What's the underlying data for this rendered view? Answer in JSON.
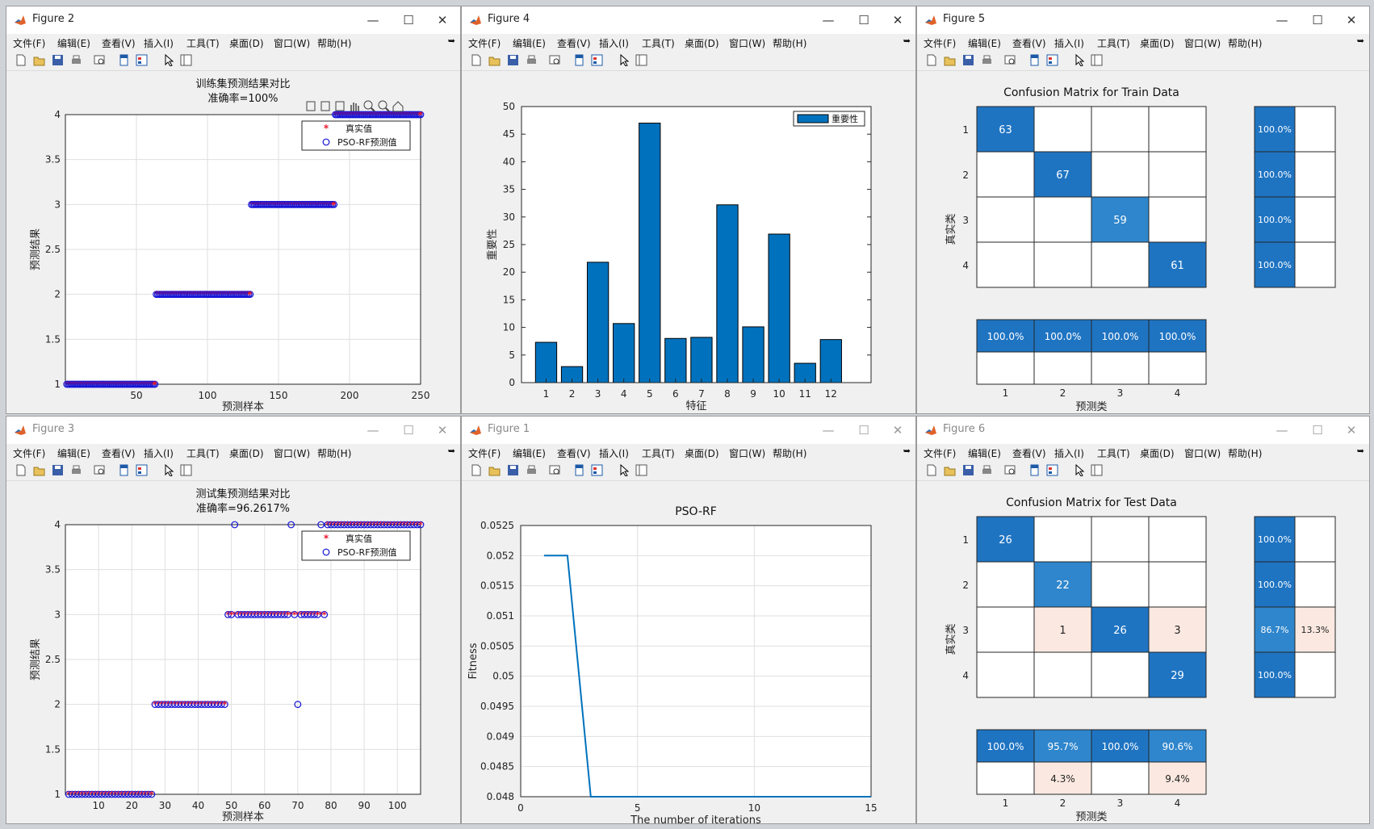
{
  "menu": [
    "文件(F)",
    "编辑(E)",
    "查看(V)",
    "插入(I)",
    "工具(T)",
    "桌面(D)",
    "窗口(W)",
    "帮助(H)"
  ],
  "windows": {
    "fig2": {
      "title": "Figure 2"
    },
    "fig4": {
      "title": "Figure 4"
    },
    "fig5": {
      "title": "Figure 5"
    },
    "fig3": {
      "title": "Figure 3"
    },
    "fig1": {
      "title": "Figure 1"
    },
    "fig6": {
      "title": "Figure 6"
    }
  },
  "colors": {
    "accent": "#0072bd",
    "true_marker": "#e8172b",
    "pred_marker": "#1515d8",
    "cm_dark": "#1f74c2",
    "cm_mid": "#2f86cc",
    "cm_pale": "#fbe9e1"
  },
  "scatter_train": {
    "title": "训练集预测结果对比",
    "subtitle": "准确率=100%",
    "xlabel": "预测样本",
    "ylabel": "预测结果",
    "legend": [
      "真实值",
      "PSO-RF预测值"
    ]
  },
  "scatter_test": {
    "title": "测试集预测结果对比",
    "subtitle": "准确率=96.2617%",
    "xlabel": "预测样本",
    "ylabel": "预测结果",
    "legend": [
      "真实值",
      "PSO-RF预测值"
    ]
  },
  "importance": {
    "xlabel": "特征",
    "ylabel": "重要性",
    "legend": "重要性"
  },
  "fitness": {
    "title": "PSO-RF",
    "xlabel": "The number of iterations",
    "ylabel": "Fitness"
  },
  "cm_train_title": "Confusion Matrix for Train Data",
  "cm_test_title": "Confusion Matrix for Test Data",
  "cm_ylabel": "真实类",
  "cm_xlabel": "预测类",
  "chart_data": [
    {
      "id": "train-scatter",
      "type": "scatter",
      "title": "训练集预测结果对比 准确率=100%",
      "xlabel": "预测样本",
      "ylabel": "预测结果",
      "xlim": [
        0,
        250
      ],
      "ylim": [
        1,
        4
      ],
      "xticks": [
        50,
        100,
        150,
        200,
        250
      ],
      "yticks": [
        1,
        1.5,
        2,
        2.5,
        3,
        3.5,
        4
      ],
      "grid": true,
      "legend_position": "top-right",
      "segments": [
        {
          "class": 1,
          "from": 1,
          "to": 63
        },
        {
          "class": 2,
          "from": 64,
          "to": 130
        },
        {
          "class": 3,
          "from": 131,
          "to": 189
        },
        {
          "class": 4,
          "from": 190,
          "to": 250
        }
      ]
    },
    {
      "id": "feature-importance",
      "type": "bar",
      "xlabel": "特征",
      "ylabel": "重要性",
      "ylim": [
        0,
        50
      ],
      "yticks": [
        0,
        5,
        10,
        15,
        20,
        25,
        30,
        35,
        40,
        45,
        50
      ],
      "categories": [
        "1",
        "2",
        "3",
        "4",
        "5",
        "6",
        "7",
        "8",
        "9",
        "10",
        "11",
        "12"
      ],
      "values": [
        7.3,
        2.9,
        21.8,
        10.7,
        47.0,
        8.0,
        8.2,
        32.2,
        10.1,
        26.9,
        3.5,
        7.8
      ],
      "legend_position": "top-right"
    },
    {
      "id": "cm-train",
      "type": "table",
      "title": "Confusion Matrix for Train Data",
      "row_labels": [
        "1",
        "2",
        "3",
        "4"
      ],
      "col_labels": [
        "1",
        "2",
        "3",
        "4"
      ],
      "matrix": [
        [
          63,
          0,
          0,
          0
        ],
        [
          0,
          67,
          0,
          0
        ],
        [
          0,
          0,
          59,
          0
        ],
        [
          0,
          0,
          0,
          61
        ]
      ],
      "row_summary": [
        [
          "100.0%",
          ""
        ],
        [
          "100.0%",
          ""
        ],
        [
          "100.0%",
          ""
        ],
        [
          "100.0%",
          ""
        ]
      ],
      "col_summary": [
        [
          "100.0%",
          ""
        ],
        [
          "100.0%",
          ""
        ],
        [
          "100.0%",
          ""
        ],
        [
          "100.0%",
          ""
        ]
      ]
    },
    {
      "id": "test-scatter",
      "type": "scatter",
      "title": "测试集预测结果对比 准确率=96.2617%",
      "xlabel": "预测样本",
      "ylabel": "预测结果",
      "xlim": [
        0,
        107
      ],
      "ylim": [
        1,
        4
      ],
      "xticks": [
        10,
        20,
        30,
        40,
        50,
        60,
        70,
        80,
        90,
        100
      ],
      "yticks": [
        1,
        1.5,
        2,
        2.5,
        3,
        3.5,
        4
      ],
      "grid": true,
      "legend_position": "top-right",
      "segments": [
        {
          "class": 1,
          "from": 1,
          "to": 26
        },
        {
          "class": 2,
          "from": 27,
          "to": 48
        },
        {
          "class": 3,
          "from": 49,
          "to": 78
        },
        {
          "class": 4,
          "from": 79,
          "to": 107
        }
      ],
      "mispredicted": [
        {
          "x": 51,
          "true": 3,
          "pred": 4
        },
        {
          "x": 68,
          "true": 3,
          "pred": 4
        },
        {
          "x": 77,
          "true": 3,
          "pred": 4
        },
        {
          "x": 70,
          "true": 3,
          "pred": 2
        }
      ]
    },
    {
      "id": "fitness-curve",
      "type": "line",
      "title": "PSO-RF",
      "xlabel": "The number of iterations",
      "ylabel": "Fitness",
      "xlim": [
        0,
        15
      ],
      "ylim": [
        0.048,
        0.0525
      ],
      "xticks": [
        0,
        5,
        10,
        15
      ],
      "yticks": [
        "0.048",
        "0.0485",
        "0.049",
        "0.0495",
        "0.05",
        "0.0505",
        "0.051",
        "0.0515",
        "0.052",
        "0.0525"
      ],
      "x": [
        1,
        2,
        3,
        4,
        5,
        6,
        7,
        8,
        9,
        10,
        11,
        12,
        13,
        14,
        15
      ],
      "y": [
        0.052,
        0.052,
        0.048,
        0.048,
        0.048,
        0.048,
        0.048,
        0.048,
        0.048,
        0.048,
        0.048,
        0.048,
        0.048,
        0.048,
        0.048
      ],
      "grid": true
    },
    {
      "id": "cm-test",
      "type": "table",
      "title": "Confusion Matrix for Test Data",
      "row_labels": [
        "1",
        "2",
        "3",
        "4"
      ],
      "col_labels": [
        "1",
        "2",
        "3",
        "4"
      ],
      "matrix": [
        [
          26,
          0,
          0,
          0
        ],
        [
          0,
          22,
          0,
          0
        ],
        [
          0,
          1,
          26,
          3
        ],
        [
          0,
          0,
          0,
          29
        ]
      ],
      "row_summary": [
        [
          "100.0%",
          ""
        ],
        [
          "100.0%",
          ""
        ],
        [
          "86.7%",
          "13.3%"
        ],
        [
          "100.0%",
          ""
        ]
      ],
      "col_summary": [
        [
          "100.0%",
          ""
        ],
        [
          "95.7%",
          "4.3%"
        ],
        [
          "100.0%",
          ""
        ],
        [
          "90.6%",
          "9.4%"
        ]
      ]
    }
  ]
}
